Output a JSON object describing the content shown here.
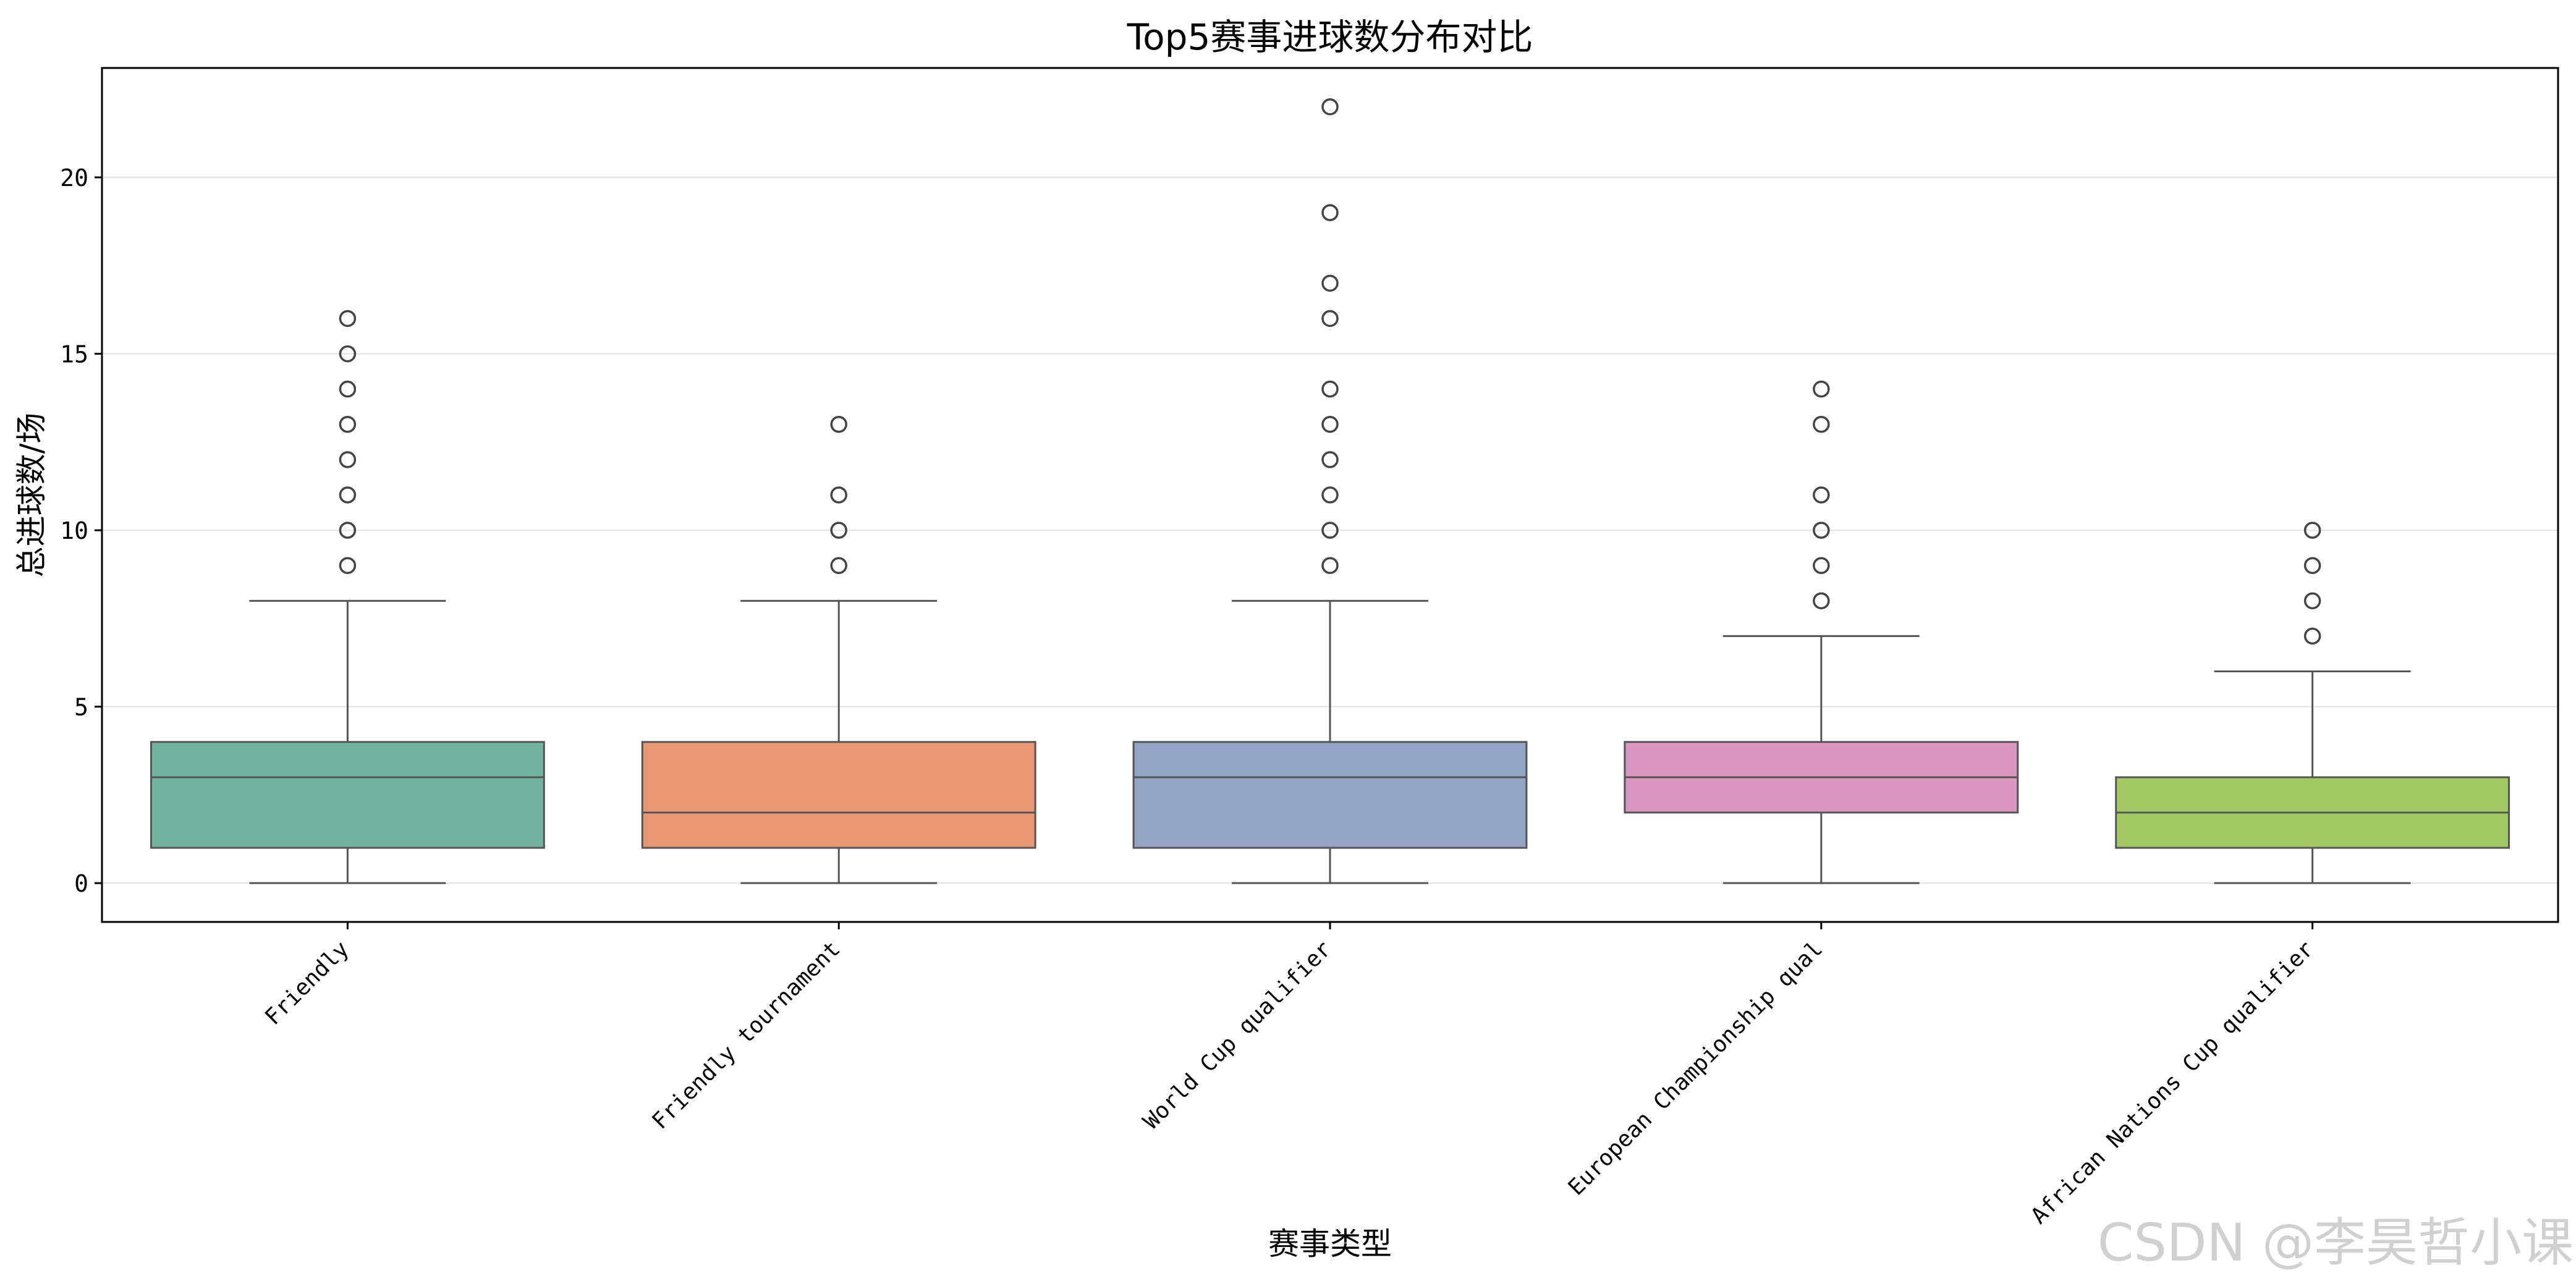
{
  "watermark": "CSDN @李昊哲小课",
  "chart_data": {
    "type": "box",
    "title": "Top5赛事进球数分布对比",
    "xlabel": "赛事类型",
    "ylabel": "总进球数/场",
    "ylim": [
      -1.1,
      23.1
    ],
    "yticks": [
      0,
      5,
      10,
      15,
      20
    ],
    "grid": "horizontal",
    "categories": [
      "Friendly",
      "Friendly tournament",
      "World Cup qualifier",
      "European Championship qual",
      "African Nations Cup qualifier"
    ],
    "boxes": [
      {
        "category": "Friendly",
        "whisker_low": 0,
        "q1": 1,
        "median": 3,
        "q3": 4,
        "whisker_high": 8,
        "outliers": [
          9,
          10,
          11,
          12,
          13,
          14,
          15,
          16
        ],
        "color": "#72b39f"
      },
      {
        "category": "Friendly tournament",
        "whisker_low": 0,
        "q1": 1,
        "median": 2,
        "q3": 4,
        "whisker_high": 8,
        "outliers": [
          9,
          10,
          11,
          13
        ],
        "color": "#e99773"
      },
      {
        "category": "World Cup qualifier",
        "whisker_low": 0,
        "q1": 1,
        "median": 3,
        "q3": 4,
        "whisker_high": 8,
        "outliers": [
          9,
          10,
          11,
          12,
          13,
          14,
          16,
          17,
          19,
          22
        ],
        "color": "#94a4c5"
      },
      {
        "category": "European Championship qual",
        "whisker_low": 0,
        "q1": 2,
        "median": 3,
        "q3": 4,
        "whisker_high": 7,
        "outliers": [
          8,
          9,
          10,
          11,
          13,
          14
        ],
        "color": "#dc97c0"
      },
      {
        "category": "African Nations Cup qualifier",
        "whisker_low": 0,
        "q1": 1,
        "median": 2,
        "q3": 3,
        "whisker_high": 6,
        "outliers": [
          7,
          8,
          9,
          10
        ],
        "color": "#a1c863"
      }
    ]
  }
}
